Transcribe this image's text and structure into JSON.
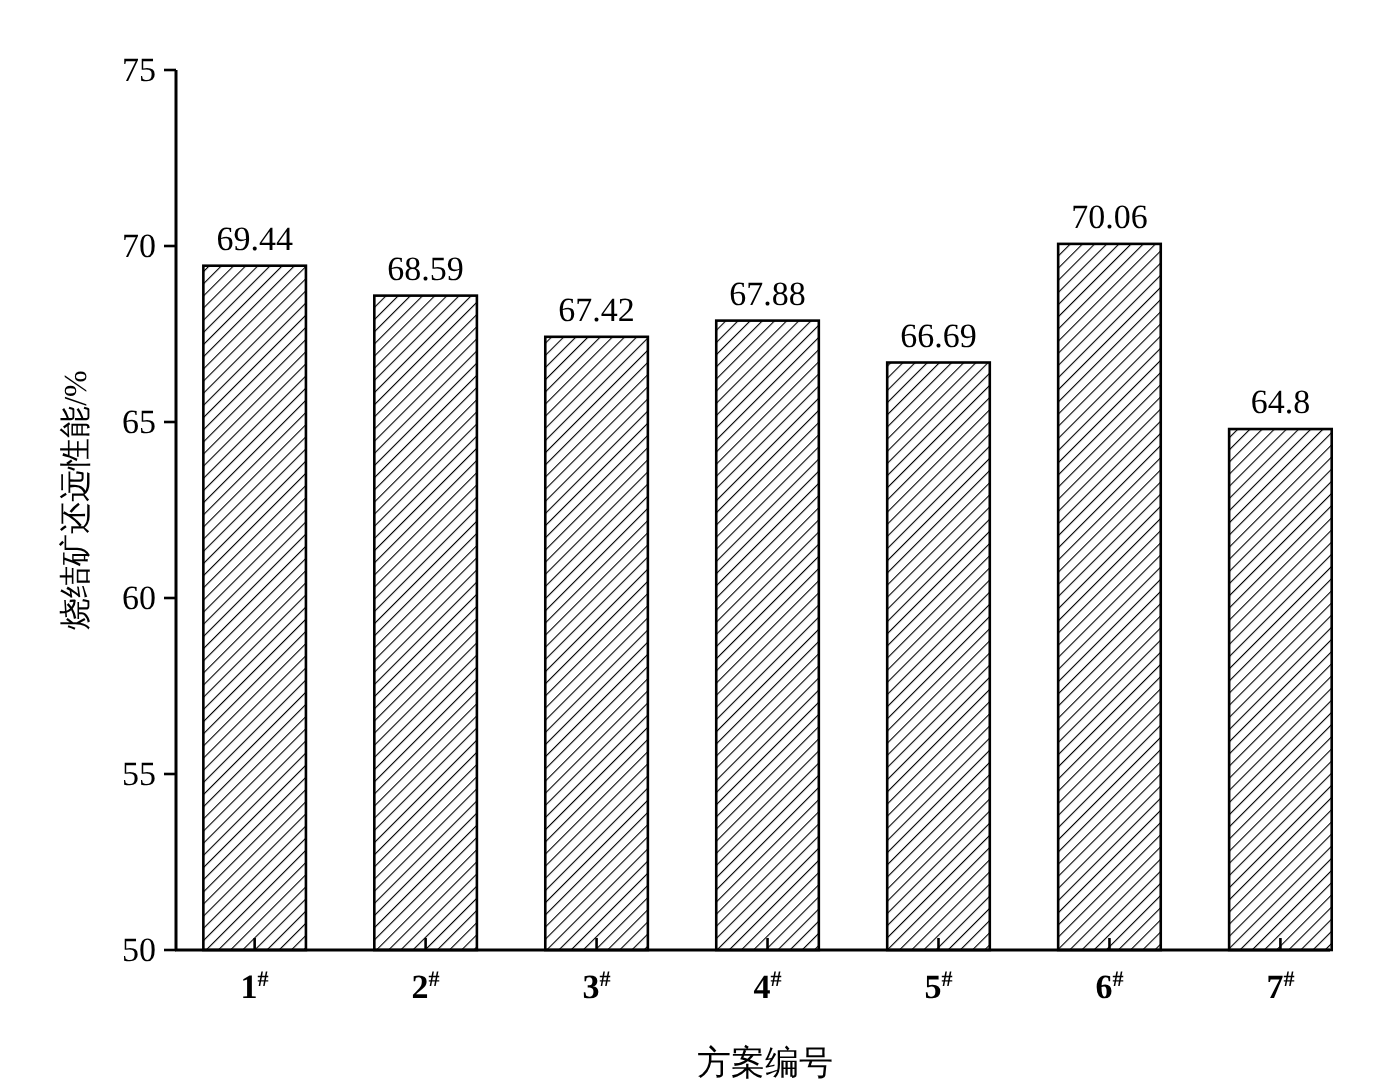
{
  "chart_data": {
    "type": "bar",
    "xlabel": "方案编号",
    "ylabel": "烧结矿还远性能/%",
    "categories": [
      "1$^{#}$",
      "2$^{#}$",
      "3$^{#}$",
      "4$^{#}$",
      "5$^{#}$",
      "6$^{#}$",
      "7$^{#}$"
    ],
    "values": [
      69.44,
      68.59,
      67.42,
      67.88,
      66.69,
      70.06,
      64.8
    ],
    "color": "#000000",
    "ylim": [
      50,
      75
    ],
    "yticks": [
      50,
      55,
      60,
      65,
      70,
      75
    ],
    "data_labels": true
  }
}
